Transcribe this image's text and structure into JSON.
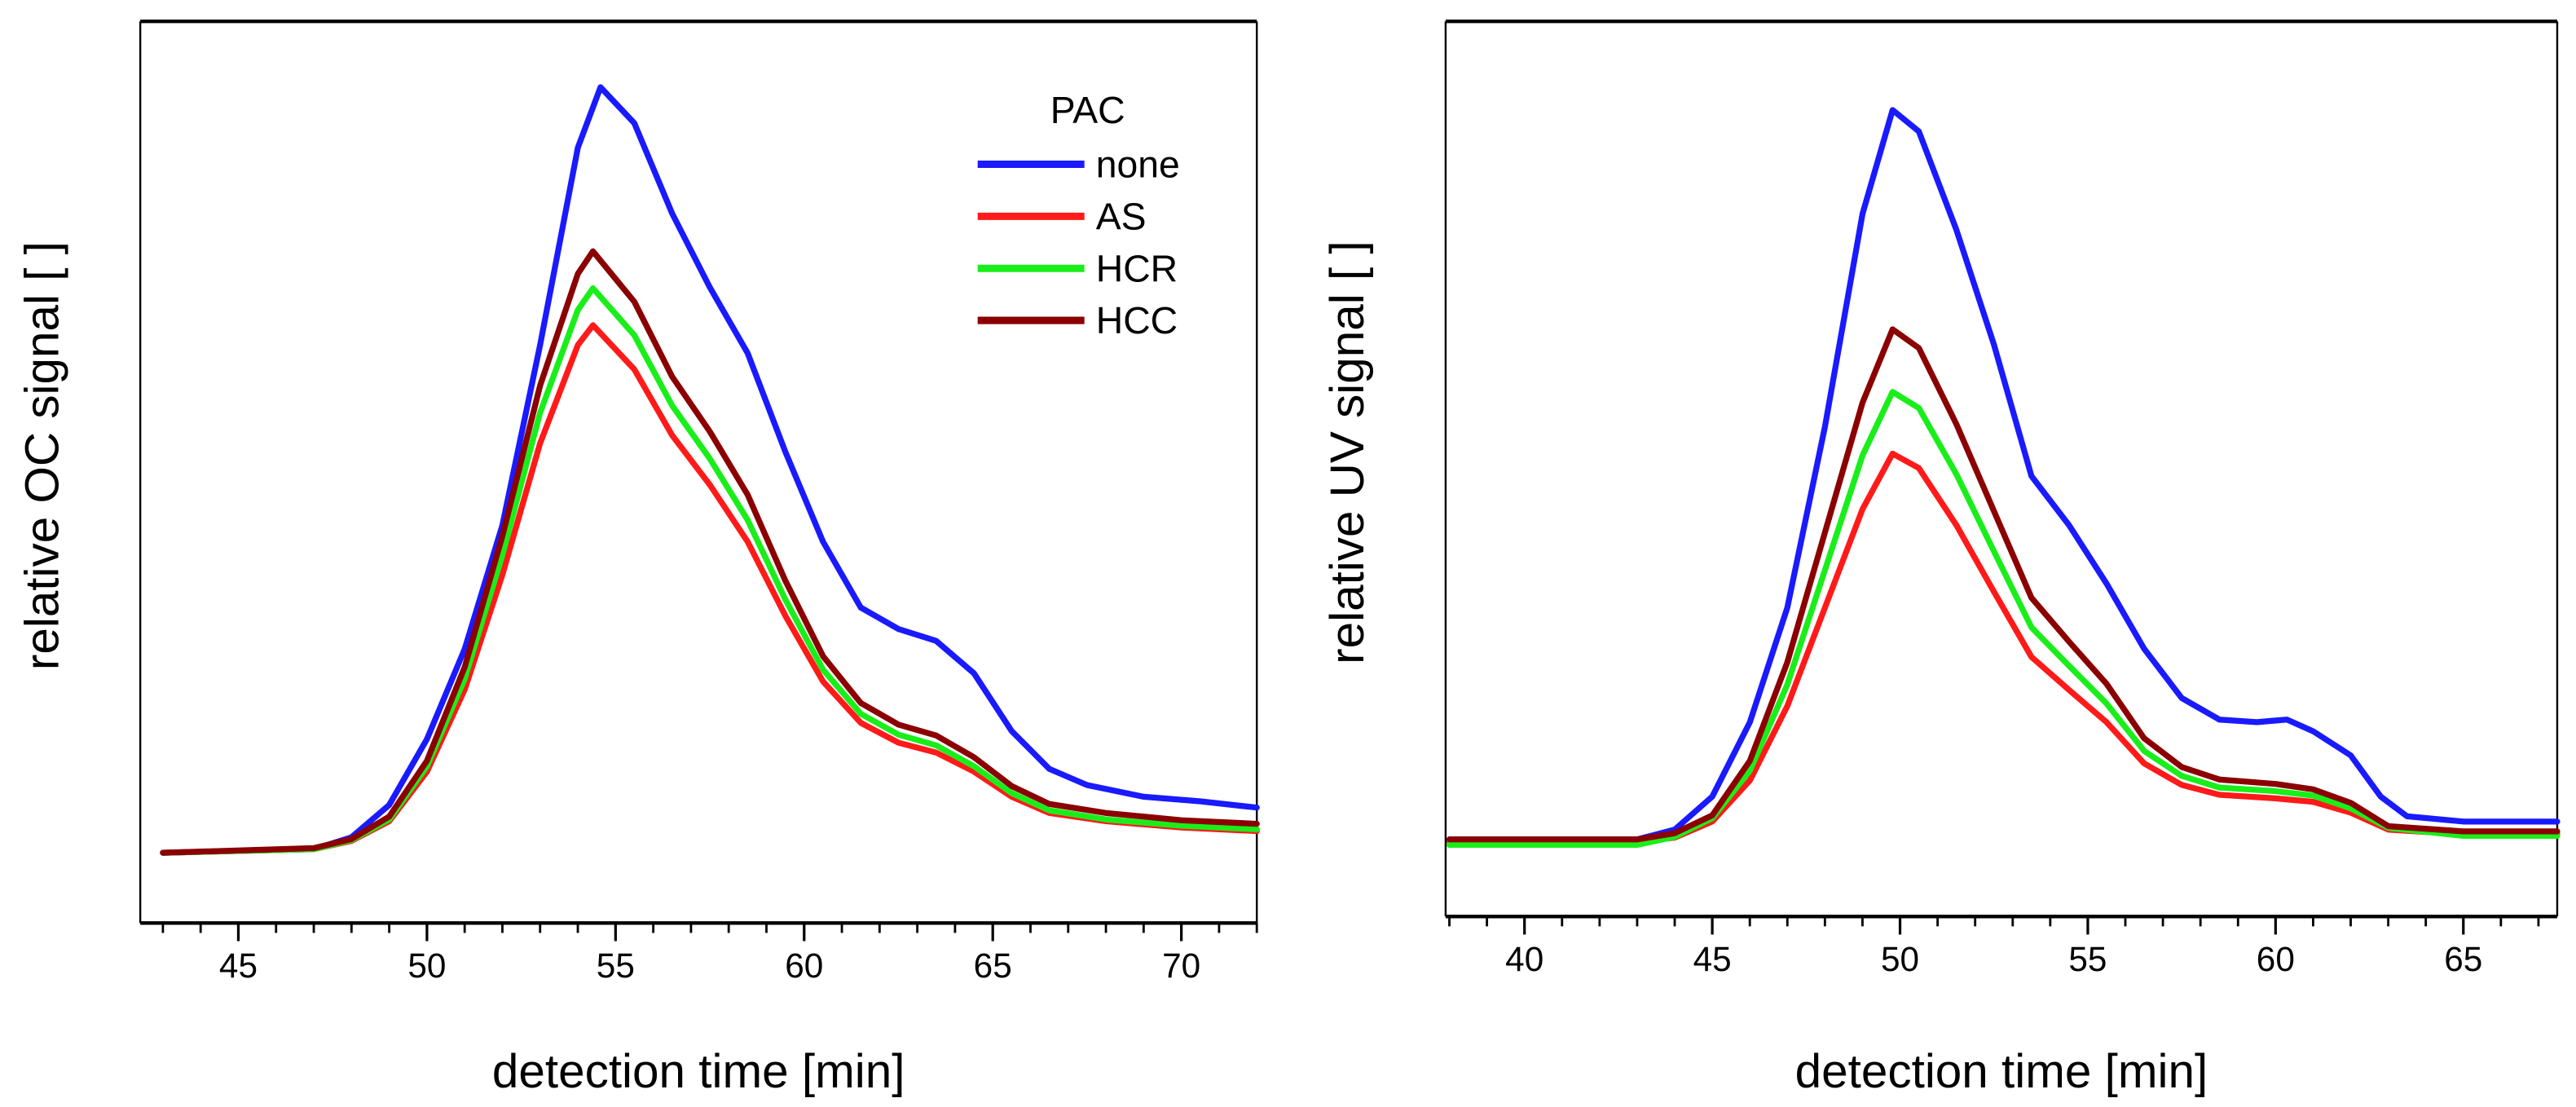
{
  "chart_data": [
    {
      "type": "line",
      "id": "oc",
      "xlabel": "detection time [min]",
      "ylabel": "relative OC signal [ ]",
      "xlim": [
        42.4,
        72
      ],
      "ylim": [
        0,
        100
      ],
      "xticks": [
        45,
        50,
        55,
        60,
        65,
        70
      ],
      "grid": false,
      "legend": {
        "title": "PAC",
        "placement": "top-right"
      },
      "x": [
        43,
        47,
        48,
        49,
        50,
        51,
        52,
        53,
        54,
        54.4,
        55.5,
        56.5,
        57.5,
        58.5,
        59.5,
        60.5,
        61.5,
        62.5,
        63.5,
        64.5,
        65.5,
        66.5,
        68,
        70,
        72
      ],
      "series": [
        {
          "name": "none",
          "color": "#1a1aff",
          "x": [
            43,
            47,
            48,
            49,
            50,
            51,
            52,
            53,
            54,
            54.6,
            55.5,
            56.5,
            57.5,
            58.5,
            59.5,
            60.5,
            61.5,
            62.5,
            63.5,
            64.5,
            65.5,
            66.5,
            67.5,
            69,
            70.5,
            72
          ],
          "values": [
            7.8,
            8.2,
            9.5,
            13.1,
            20.4,
            30.4,
            44.1,
            64.1,
            86,
            92.7,
            88.7,
            78.7,
            70.5,
            63.2,
            52.3,
            42.3,
            35,
            32.6,
            31.3,
            27.7,
            21.3,
            17.1,
            15.3,
            14,
            13.5,
            12.8
          ]
        },
        {
          "name": "AS",
          "color": "#ff1a1a",
          "values": [
            7.8,
            8.2,
            9.1,
            11.3,
            16.8,
            25.9,
            38.6,
            53.2,
            64.1,
            66.3,
            61.4,
            54.1,
            48.6,
            42.3,
            34.1,
            26.8,
            22.2,
            20,
            18.9,
            16.8,
            14,
            12.2,
            11.3,
            10.6,
            10.2
          ]
        },
        {
          "name": "HCR",
          "color": "#1aee1a",
          "values": [
            7.8,
            8.2,
            9.2,
            11.5,
            17.4,
            27.1,
            40.8,
            56.6,
            68.0,
            70.4,
            65.2,
            57.4,
            51.5,
            44.7,
            35.9,
            28.1,
            23.2,
            20.9,
            19.7,
            17.4,
            14.4,
            12.5,
            11.5,
            10.8,
            10.4
          ]
        },
        {
          "name": "HCC",
          "color": "#8b0000",
          "values": [
            7.8,
            8.3,
            9.3,
            11.8,
            18.0,
            28.4,
            42.9,
            59.6,
            72.0,
            74.5,
            68.9,
            60.6,
            54.5,
            47.5,
            38.0,
            29.6,
            24.4,
            22.0,
            20.8,
            18.4,
            15.2,
            13.2,
            12.2,
            11.4,
            11.0
          ]
        }
      ]
    },
    {
      "type": "line",
      "id": "uv",
      "xlabel": "detection time [min]",
      "ylabel": "relative UV signal [ ]",
      "xlim": [
        37.9,
        67.5
      ],
      "ylim": [
        0,
        100
      ],
      "xticks": [
        40,
        45,
        50,
        55,
        60,
        65
      ],
      "grid": false,
      "x": [
        38,
        43,
        44,
        45,
        46,
        47,
        48,
        49,
        49.8,
        50.5,
        51.5,
        52.5,
        53.5,
        54.5,
        55.5,
        56.5,
        57.5,
        58.5,
        60,
        61,
        62,
        63,
        65,
        67.5
      ],
      "series": [
        {
          "name": "none",
          "color": "#1a1aff",
          "x": [
            38,
            43,
            44,
            45,
            46,
            47,
            48,
            49,
            49.8,
            50.5,
            51.5,
            52.5,
            53.5,
            54.5,
            55.5,
            56.5,
            57.5,
            58.5,
            59.5,
            60.3,
            61,
            62,
            62.8,
            63.5,
            65,
            67.5
          ],
          "values": [
            8.6,
            8.6,
            9.7,
            13.4,
            21.7,
            34.5,
            54.7,
            78.5,
            90.1,
            87.7,
            76.7,
            63.9,
            49.2,
            43.7,
            37.2,
            29.9,
            24.4,
            22,
            21.7,
            22,
            20.7,
            18,
            13.4,
            11.2,
            10.6,
            10.6
          ]
        },
        {
          "name": "AS",
          "color": "#ff1a1a",
          "values": [
            8.3,
            8.3,
            8.8,
            10.6,
            15.2,
            23.5,
            34.5,
            45.5,
            51.7,
            50.1,
            43.7,
            36.3,
            29,
            25.3,
            21.7,
            17.1,
            14.7,
            13.6,
            13.2,
            12.8,
            11.6,
            9.7,
            9.2,
            9.2
          ]
        },
        {
          "name": "HCR",
          "color": "#1aee1a",
          "values": [
            8.0,
            8.0,
            8.9,
            11.0,
            16.3,
            25.9,
            38.7,
            51.5,
            58.6,
            56.8,
            49.4,
            40.8,
            32.3,
            28.0,
            23.8,
            18.5,
            15.7,
            14.4,
            14.0,
            13.5,
            12.1,
            9.9,
            9.0,
            9.0
          ]
        },
        {
          "name": "HCC",
          "color": "#8b0000",
          "values": [
            8.6,
            8.6,
            9.3,
            11.3,
            17.4,
            28.4,
            42.9,
            57.4,
            65.6,
            63.5,
            55.0,
            45.3,
            35.6,
            30.7,
            26.0,
            19.9,
            16.7,
            15.3,
            14.8,
            14.2,
            12.7,
            10.1,
            9.5,
            9.5
          ]
        }
      ]
    }
  ]
}
